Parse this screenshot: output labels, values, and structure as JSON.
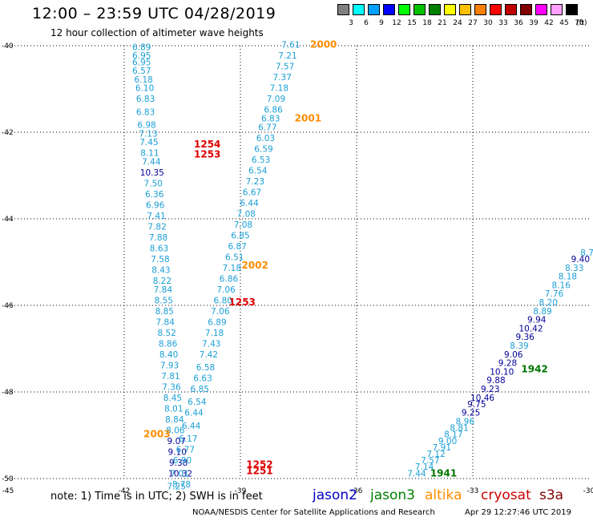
{
  "title": "12:00 – 23:59 UTC 04/28/2019",
  "subtitle": "12 hour collection of altimeter wave heights",
  "legend": {
    "unit": "(ft)",
    "items": [
      {
        "color": "#808080",
        "label": "3"
      },
      {
        "color": "#00ffff",
        "label": "6"
      },
      {
        "color": "#00a0ff",
        "label": "9"
      },
      {
        "color": "#0000ff",
        "label": "12"
      },
      {
        "color": "#00ff00",
        "label": "15"
      },
      {
        "color": "#00c000",
        "label": "18"
      },
      {
        "color": "#008000",
        "label": "21"
      },
      {
        "color": "#ffff00",
        "label": "24"
      },
      {
        "color": "#ffc000",
        "label": "27"
      },
      {
        "color": "#ff8000",
        "label": "30"
      },
      {
        "color": "#ff0000",
        "label": "33"
      },
      {
        "color": "#c00000",
        "label": "36"
      },
      {
        "color": "#800000",
        "label": "39"
      },
      {
        "color": "#ff00ff",
        "label": "42"
      },
      {
        "color": "#ffa0ff",
        "label": "45"
      },
      {
        "color": "#000000",
        "label": "70"
      }
    ]
  },
  "axes": {
    "lon_ticks": [
      "-45",
      "-42",
      "-39",
      "-36",
      "-33",
      "-30"
    ],
    "lat_ticks": [
      "-40",
      "-42",
      "-44",
      "-46",
      "-48",
      "-50"
    ]
  },
  "note": "note: 1) Time is in UTC; 2) SWH is in feet",
  "satellites": [
    {
      "name": "jason2",
      "color": "#0000cc"
    },
    {
      "name": "jason3",
      "color": "#008000"
    },
    {
      "name": "altika",
      "color": "#ff8c00"
    },
    {
      "name": "cryosat",
      "color": "#cc0000"
    },
    {
      "name": "s3a",
      "color": "#800000"
    }
  ],
  "credit": "NOAA/NESDIS Center for Satellite Applications and Research",
  "timestamp": "Apr 29 12:27:46 UTC 2019",
  "colors": {
    "cyan": "#1a9fd6",
    "navy": "#000099",
    "orange": "#ff8c00",
    "red": "#dd0000",
    "green": "#007700"
  },
  "track_labels": [
    {
      "text": "2000",
      "color": "orange",
      "lon": -37.2,
      "lat": -40.05
    },
    {
      "text": "2001",
      "color": "orange",
      "lon": -37.6,
      "lat": -41.75
    },
    {
      "text": "1254",
      "color": "red",
      "lon": -40.2,
      "lat": -42.35
    },
    {
      "text": "1253",
      "color": "red",
      "lon": -40.2,
      "lat": -42.58
    },
    {
      "text": "2002",
      "color": "orange",
      "lon": -38.97,
      "lat": -45.15
    },
    {
      "text": "1253",
      "color": "red",
      "lon": -39.3,
      "lat": -46.0
    },
    {
      "text": "1942",
      "color": "green",
      "lon": -31.75,
      "lat": -47.55
    },
    {
      "text": "2003",
      "color": "orange",
      "lon": -41.5,
      "lat": -49.05
    },
    {
      "text": "1252",
      "color": "red",
      "lon": -38.85,
      "lat": -49.75
    },
    {
      "text": "1251",
      "color": "red",
      "lon": -38.85,
      "lat": -49.9
    },
    {
      "text": "1941",
      "color": "green",
      "lon": -34.1,
      "lat": -49.95
    }
  ],
  "tracks": [
    {
      "name": "track-a",
      "color": "cyan",
      "values": [
        {
          "lon": -41.55,
          "lat": -40.1,
          "v": "6.89"
        },
        {
          "lon": -41.55,
          "lat": -40.3,
          "v": "6.95"
        },
        {
          "lon": -41.55,
          "lat": -40.45,
          "v": "6.95"
        },
        {
          "lon": -41.55,
          "lat": -40.65,
          "v": "6.57"
        },
        {
          "lon": -41.5,
          "lat": -40.85,
          "v": "6.18"
        },
        {
          "lon": -41.47,
          "lat": -41.05,
          "v": "6.10"
        },
        {
          "lon": -41.45,
          "lat": -41.3,
          "v": "6.83"
        },
        {
          "lon": -41.45,
          "lat": -41.6,
          "v": "6.83"
        },
        {
          "lon": -41.42,
          "lat": -41.9,
          "v": "6.98"
        },
        {
          "lon": -41.38,
          "lat": -42.1,
          "v": "7.13"
        },
        {
          "lon": -41.36,
          "lat": -42.3,
          "v": "7.45"
        },
        {
          "lon": -41.34,
          "lat": -42.55,
          "v": "8.11"
        },
        {
          "lon": -41.3,
          "lat": -42.75,
          "v": "7.44"
        },
        {
          "lon": -41.28,
          "lat": -43.0,
          "v": "10.35",
          "color": "navy"
        },
        {
          "lon": -41.25,
          "lat": -43.25,
          "v": "7.50"
        },
        {
          "lon": -41.22,
          "lat": -43.5,
          "v": "6.36"
        },
        {
          "lon": -41.2,
          "lat": -43.75,
          "v": "6.96"
        },
        {
          "lon": -41.17,
          "lat": -44.0,
          "v": "7.41"
        },
        {
          "lon": -41.15,
          "lat": -44.25,
          "v": "7.82"
        },
        {
          "lon": -41.12,
          "lat": -44.5,
          "v": "7.88"
        },
        {
          "lon": -41.1,
          "lat": -44.75,
          "v": "8.63"
        },
        {
          "lon": -41.07,
          "lat": -45.0,
          "v": "7.58"
        },
        {
          "lon": -41.05,
          "lat": -45.25,
          "v": "8.43"
        },
        {
          "lon": -41.02,
          "lat": -45.5,
          "v": "8.22"
        },
        {
          "lon": -41.0,
          "lat": -45.7,
          "v": "7.84"
        },
        {
          "lon": -40.98,
          "lat": -45.95,
          "v": "8.55"
        },
        {
          "lon": -40.96,
          "lat": -46.2,
          "v": "8.85"
        },
        {
          "lon": -40.94,
          "lat": -46.45,
          "v": "7.84"
        },
        {
          "lon": -40.9,
          "lat": -46.7,
          "v": "8.52"
        },
        {
          "lon": -40.87,
          "lat": -46.95,
          "v": "8.86"
        },
        {
          "lon": -40.85,
          "lat": -47.2,
          "v": "8.40"
        },
        {
          "lon": -40.83,
          "lat": -47.45,
          "v": "7.93"
        },
        {
          "lon": -40.8,
          "lat": -47.7,
          "v": "7.81"
        },
        {
          "lon": -40.78,
          "lat": -47.95,
          "v": "7.36"
        },
        {
          "lon": -40.75,
          "lat": -48.2,
          "v": "8.45"
        },
        {
          "lon": -40.72,
          "lat": -48.45,
          "v": "8.01"
        },
        {
          "lon": -40.7,
          "lat": -48.7,
          "v": "8.84"
        },
        {
          "lon": -40.68,
          "lat": -48.95,
          "v": "8.06"
        },
        {
          "lon": -40.65,
          "lat": -49.2,
          "v": "9.07",
          "color": "navy"
        },
        {
          "lon": -40.63,
          "lat": -49.45,
          "v": "9.10",
          "color": "navy"
        },
        {
          "lon": -40.6,
          "lat": -49.7,
          "v": "9.38",
          "color": "navy"
        },
        {
          "lon": -40.55,
          "lat": -49.95,
          "v": "10.32",
          "color": "navy"
        },
        {
          "lon": -40.52,
          "lat": -50.2,
          "v": "8.78"
        }
      ]
    },
    {
      "name": "track-b",
      "color": "cyan",
      "values": [
        {
          "lon": -37.7,
          "lat": -40.05,
          "v": "7.61"
        },
        {
          "lon": -37.78,
          "lat": -40.3,
          "v": "7.21"
        },
        {
          "lon": -37.85,
          "lat": -40.55,
          "v": "7.57"
        },
        {
          "lon": -37.92,
          "lat": -40.8,
          "v": "7.37"
        },
        {
          "lon": -38.0,
          "lat": -41.05,
          "v": "7.18"
        },
        {
          "lon": -38.08,
          "lat": -41.3,
          "v": "7.09"
        },
        {
          "lon": -38.15,
          "lat": -41.55,
          "v": "6.86"
        },
        {
          "lon": -38.22,
          "lat": -41.75,
          "v": "6.83"
        },
        {
          "lon": -38.3,
          "lat": -41.95,
          "v": "6.77"
        },
        {
          "lon": -38.35,
          "lat": -42.2,
          "v": "6.03"
        },
        {
          "lon": -38.4,
          "lat": -42.45,
          "v": "6.59"
        },
        {
          "lon": -38.47,
          "lat": -42.7,
          "v": "6.53"
        },
        {
          "lon": -38.55,
          "lat": -42.95,
          "v": "6.54"
        },
        {
          "lon": -38.62,
          "lat": -43.2,
          "v": "7.23"
        },
        {
          "lon": -38.7,
          "lat": -43.45,
          "v": "6.67"
        },
        {
          "lon": -38.77,
          "lat": -43.7,
          "v": "6.44"
        },
        {
          "lon": -38.85,
          "lat": -43.95,
          "v": "7.08"
        },
        {
          "lon": -38.93,
          "lat": -44.2,
          "v": "7.08"
        },
        {
          "lon": -39.0,
          "lat": -44.45,
          "v": "6.85"
        },
        {
          "lon": -39.08,
          "lat": -44.7,
          "v": "6.87"
        },
        {
          "lon": -39.15,
          "lat": -44.95,
          "v": "6.51"
        },
        {
          "lon": -39.22,
          "lat": -45.2,
          "v": "7.18"
        },
        {
          "lon": -39.3,
          "lat": -45.45,
          "v": "6.86"
        },
        {
          "lon": -39.37,
          "lat": -45.7,
          "v": "7.06"
        },
        {
          "lon": -39.45,
          "lat": -45.95,
          "v": "6.80"
        },
        {
          "lon": -39.52,
          "lat": -46.2,
          "v": "7.06"
        },
        {
          "lon": -39.6,
          "lat": -46.45,
          "v": "6.89"
        },
        {
          "lon": -39.67,
          "lat": -46.7,
          "v": "7.18"
        },
        {
          "lon": -39.75,
          "lat": -46.95,
          "v": "7.43"
        },
        {
          "lon": -39.82,
          "lat": -47.2,
          "v": "7.42"
        },
        {
          "lon": -39.9,
          "lat": -47.5,
          "v": "6.58"
        },
        {
          "lon": -39.97,
          "lat": -47.75,
          "v": "6.63"
        },
        {
          "lon": -40.05,
          "lat": -48.0,
          "v": "6.85"
        },
        {
          "lon": -40.12,
          "lat": -48.3,
          "v": "6.54"
        },
        {
          "lon": -40.2,
          "lat": -48.55,
          "v": "6.44"
        },
        {
          "lon": -40.27,
          "lat": -48.85,
          "v": "6.44"
        },
        {
          "lon": -40.35,
          "lat": -49.15,
          "v": "6.17"
        },
        {
          "lon": -40.42,
          "lat": -49.4,
          "v": "6.77"
        },
        {
          "lon": -40.5,
          "lat": -49.65,
          "v": "6.90"
        },
        {
          "lon": -40.57,
          "lat": -49.95,
          "v": "7.01"
        },
        {
          "lon": -40.65,
          "lat": -50.25,
          "v": "7.25"
        }
      ]
    },
    {
      "name": "track-c",
      "color": "cyan",
      "values": [
        {
          "lon": -34.45,
          "lat": -49.95,
          "v": "7.44"
        },
        {
          "lon": -34.25,
          "lat": -49.8,
          "v": "7.14"
        },
        {
          "lon": -34.1,
          "lat": -49.65,
          "v": "7.57"
        },
        {
          "lon": -33.95,
          "lat": -49.5,
          "v": "7.12"
        },
        {
          "lon": -33.8,
          "lat": -49.35,
          "v": "7.91"
        },
        {
          "lon": -33.65,
          "lat": -49.2,
          "v": "9.00"
        },
        {
          "lon": -33.5,
          "lat": -49.05,
          "v": "8.17"
        },
        {
          "lon": -33.35,
          "lat": -48.9,
          "v": "8.81"
        },
        {
          "lon": -33.2,
          "lat": -48.75,
          "v": "8.96"
        },
        {
          "lon": -33.05,
          "lat": -48.55,
          "v": "9.25",
          "color": "navy"
        },
        {
          "lon": -32.9,
          "lat": -48.35,
          "v": "9.75",
          "color": "navy"
        },
        {
          "lon": -32.75,
          "lat": -48.2,
          "v": "10.46",
          "color": "navy"
        },
        {
          "lon": -32.55,
          "lat": -48.0,
          "v": "9.23",
          "color": "navy"
        },
        {
          "lon": -32.4,
          "lat": -47.8,
          "v": "9.88",
          "color": "navy"
        },
        {
          "lon": -32.25,
          "lat": -47.6,
          "v": "10.10",
          "color": "navy"
        },
        {
          "lon": -32.1,
          "lat": -47.4,
          "v": "9.28",
          "color": "navy"
        },
        {
          "lon": -31.95,
          "lat": -47.2,
          "v": "9.06",
          "color": "navy"
        },
        {
          "lon": -31.8,
          "lat": -47.0,
          "v": "8.39"
        },
        {
          "lon": -31.65,
          "lat": -46.8,
          "v": "9.36",
          "color": "navy"
        },
        {
          "lon": -31.5,
          "lat": -46.6,
          "v": "10.42",
          "color": "navy"
        },
        {
          "lon": -31.35,
          "lat": -46.4,
          "v": "9.94",
          "color": "navy"
        },
        {
          "lon": -31.2,
          "lat": -46.2,
          "v": "8.89"
        },
        {
          "lon": -31.05,
          "lat": -46.0,
          "v": "8.20"
        },
        {
          "lon": -30.9,
          "lat": -45.8,
          "v": "7.76"
        },
        {
          "lon": -30.72,
          "lat": -45.6,
          "v": "8.16"
        },
        {
          "lon": -30.55,
          "lat": -45.4,
          "v": "8.18"
        },
        {
          "lon": -30.38,
          "lat": -45.2,
          "v": "8.33"
        },
        {
          "lon": -30.22,
          "lat": -45.0,
          "v": "9.40",
          "color": "navy"
        },
        {
          "lon": -30.05,
          "lat": -44.85,
          "v": "8.7"
        }
      ]
    }
  ]
}
